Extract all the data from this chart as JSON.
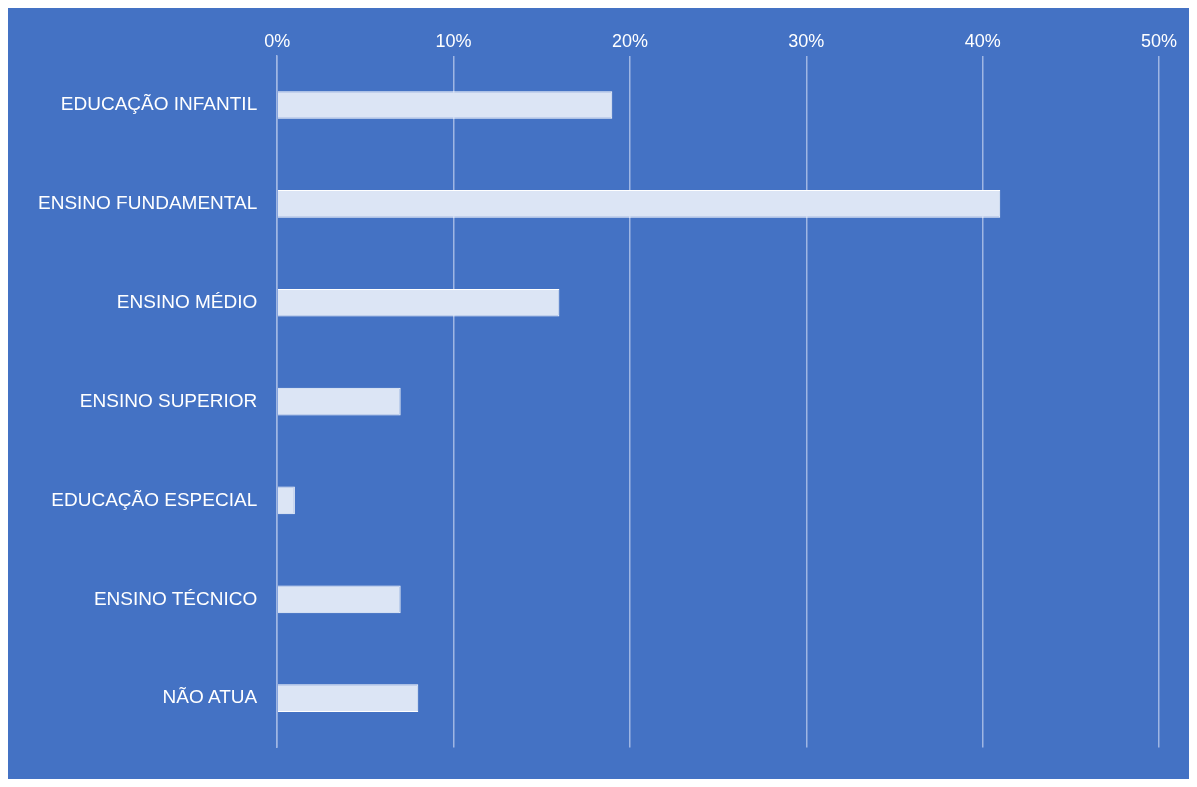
{
  "chart_data": {
    "type": "bar",
    "orientation": "horizontal",
    "categories": [
      "EDUCAÇÃO INFANTIL",
      "ENSINO FUNDAMENTAL",
      "ENSINO MÉDIO",
      "ENSINO SUPERIOR",
      "EDUCAÇÃO ESPECIAL",
      "ENSINO TÉCNICO",
      "NÃO ATUA"
    ],
    "values": [
      19,
      41,
      16,
      7,
      1,
      7,
      8
    ],
    "color": "#dce5f5",
    "xlim": [
      0,
      50
    ],
    "xticks": [
      {
        "value": 0,
        "label": "0%"
      },
      {
        "value": 10,
        "label": "10%"
      },
      {
        "value": 20,
        "label": "20%"
      },
      {
        "value": 30,
        "label": "30%"
      },
      {
        "value": 40,
        "label": "40%"
      },
      {
        "value": 50,
        "label": "50%"
      }
    ],
    "grid": "x",
    "legend": false
  }
}
